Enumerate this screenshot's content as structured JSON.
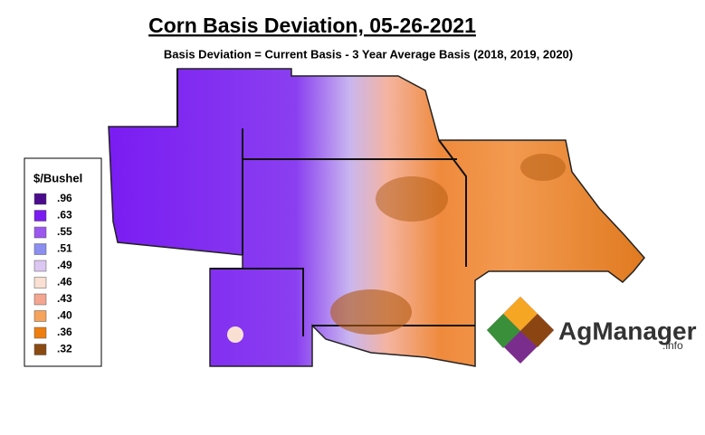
{
  "header": {
    "title": "Corn Basis Deviation, 05-26-2021",
    "subtitle": "Basis Deviation = Current Basis - 3 Year Average Basis (2018, 2019, 2020)"
  },
  "legend": {
    "title": "$/Bushel",
    "items": [
      {
        "label": ".96",
        "color": "#4a0c8c"
      },
      {
        "label": ".63",
        "color": "#7a1cf2"
      },
      {
        "label": ".55",
        "color": "#9c57ee"
      },
      {
        "label": ".51",
        "color": "#8c8ef0"
      },
      {
        "label": ".49",
        "color": "#dcc6f2"
      },
      {
        "label": ".46",
        "color": "#f9e0d2"
      },
      {
        "label": ".43",
        "color": "#f4a690"
      },
      {
        "label": ".40",
        "color": "#f6a35c"
      },
      {
        "label": ".36",
        "color": "#ee7e10"
      },
      {
        "label": ".32",
        "color": "#8b4a12"
      }
    ]
  },
  "logo": {
    "name": "AgManager",
    "suffix": ".info"
  }
}
